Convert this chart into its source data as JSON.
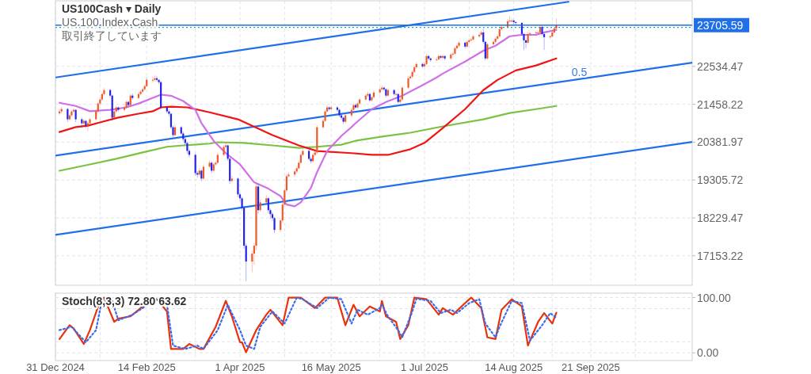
{
  "chart_data": [
    {
      "type": "candlestick",
      "title": "US100Cash ▾ Daily",
      "subtitle": "US 100 Index Cash",
      "annotations": [
        "取引終了しています",
        {
          "text": "0.5",
          "x": "2025-09-10",
          "y": 22130
        }
      ],
      "x": [
        "2025-01-02",
        "2025-01-03",
        "2025-01-06",
        "2025-01-07",
        "2025-01-08",
        "2025-01-09",
        "2025-01-10",
        "2025-01-13",
        "2025-01-14",
        "2025-01-15",
        "2025-01-16",
        "2025-01-17",
        "2025-01-20",
        "2025-01-21",
        "2025-01-22",
        "2025-01-23",
        "2025-01-24",
        "2025-01-27",
        "2025-01-28",
        "2025-01-29",
        "2025-01-30",
        "2025-01-31",
        "2025-02-03",
        "2025-02-04",
        "2025-02-05",
        "2025-02-06",
        "2025-02-07",
        "2025-02-10",
        "2025-02-11",
        "2025-02-12",
        "2025-02-13",
        "2025-02-14",
        "2025-02-17",
        "2025-02-18",
        "2025-02-19",
        "2025-02-20",
        "2025-02-21",
        "2025-02-24",
        "2025-02-25",
        "2025-02-26",
        "2025-02-27",
        "2025-02-28",
        "2025-03-03",
        "2025-03-04",
        "2025-03-05",
        "2025-03-06",
        "2025-03-07",
        "2025-03-10",
        "2025-03-11",
        "2025-03-12",
        "2025-03-13",
        "2025-03-14",
        "2025-03-17",
        "2025-03-18",
        "2025-03-19",
        "2025-03-20",
        "2025-03-21",
        "2025-03-24",
        "2025-03-25",
        "2025-03-26",
        "2025-03-27",
        "2025-03-28",
        "2025-03-31",
        "2025-04-01",
        "2025-04-02",
        "2025-04-03",
        "2025-04-04",
        "2025-04-07",
        "2025-04-08",
        "2025-04-09",
        "2025-04-10",
        "2025-04-11",
        "2025-04-14",
        "2025-04-15",
        "2025-04-16",
        "2025-04-17",
        "2025-04-18",
        "2025-04-21",
        "2025-04-22",
        "2025-04-23",
        "2025-04-24",
        "2025-04-25",
        "2025-04-28",
        "2025-04-29",
        "2025-04-30",
        "2025-05-01",
        "2025-05-02",
        "2025-05-05",
        "2025-05-06",
        "2025-05-07",
        "2025-05-08",
        "2025-05-09",
        "2025-05-12",
        "2025-05-13",
        "2025-05-14",
        "2025-05-15",
        "2025-05-16",
        "2025-05-19",
        "2025-05-20",
        "2025-05-21",
        "2025-05-22",
        "2025-05-23",
        "2025-05-26",
        "2025-05-27",
        "2025-05-28",
        "2025-05-29",
        "2025-05-30",
        "2025-06-02",
        "2025-06-03",
        "2025-06-04",
        "2025-06-05",
        "2025-06-06",
        "2025-06-09",
        "2025-06-10",
        "2025-06-11",
        "2025-06-12",
        "2025-06-13",
        "2025-06-16",
        "2025-06-17",
        "2025-06-18",
        "2025-06-19",
        "2025-06-20",
        "2025-06-23",
        "2025-06-24",
        "2025-06-25",
        "2025-06-26",
        "2025-06-27",
        "2025-06-30",
        "2025-07-01",
        "2025-07-02",
        "2025-07-03",
        "2025-07-04",
        "2025-07-07",
        "2025-07-08",
        "2025-07-09",
        "2025-07-10",
        "2025-07-11",
        "2025-07-14",
        "2025-07-15",
        "2025-07-16",
        "2025-07-17",
        "2025-07-18",
        "2025-07-21",
        "2025-07-22",
        "2025-07-23",
        "2025-07-24",
        "2025-07-25",
        "2025-07-28",
        "2025-07-29",
        "2025-07-30",
        "2025-07-31",
        "2025-08-01",
        "2025-08-04",
        "2025-08-05",
        "2025-08-06",
        "2025-08-07",
        "2025-08-08",
        "2025-08-11",
        "2025-08-12",
        "2025-08-13",
        "2025-08-14",
        "2025-08-15",
        "2025-08-18",
        "2025-08-19",
        "2025-08-20",
        "2025-08-21",
        "2025-08-22",
        "2025-08-25",
        "2025-08-26",
        "2025-08-27",
        "2025-08-28",
        "2025-08-29",
        "2025-09-01",
        "2025-09-02",
        "2025-09-03",
        "2025-09-04"
      ],
      "ohlc": [
        [
          21200,
          21330,
          21150,
          21255
        ],
        [
          21255,
          21380,
          21200,
          21322
        ],
        [
          21322,
          21360,
          20960,
          21031
        ],
        [
          21031,
          21200,
          20990,
          21143
        ],
        [
          21143,
          21300,
          21100,
          21255
        ],
        [
          21255,
          21350,
          21210,
          21300
        ],
        [
          21300,
          21320,
          20950,
          21031
        ],
        [
          21031,
          21080,
          20800,
          20918
        ],
        [
          20918,
          21040,
          20870,
          20986
        ],
        [
          20986,
          21010,
          20780,
          20851
        ],
        [
          20851,
          20960,
          20700,
          20918
        ],
        [
          20918,
          21080,
          20880,
          21031
        ],
        [
          21031,
          21300,
          21000,
          21255
        ],
        [
          21255,
          21520,
          21220,
          21480
        ],
        [
          21480,
          21640,
          21440,
          21592
        ],
        [
          21592,
          21800,
          21560,
          21749
        ],
        [
          21749,
          21920,
          21700,
          21861
        ],
        [
          21861,
          21900,
          21660,
          21704
        ],
        [
          21704,
          21730,
          20990,
          21076
        ],
        [
          21076,
          21300,
          21030,
          21255
        ],
        [
          21255,
          21420,
          21200,
          21367
        ],
        [
          21367,
          21400,
          21250,
          21300
        ],
        [
          21300,
          21410,
          21260,
          21367
        ],
        [
          21367,
          21570,
          21330,
          21524
        ],
        [
          21524,
          21560,
          21390,
          21435
        ],
        [
          21435,
          21750,
          21400,
          21704
        ],
        [
          21704,
          21760,
          21590,
          21637
        ],
        [
          21637,
          21800,
          21600,
          21749
        ],
        [
          21749,
          21860,
          21700,
          21816
        ],
        [
          21816,
          21930,
          21780,
          21884
        ],
        [
          21884,
          22020,
          21840,
          21973
        ],
        [
          21973,
          22230,
          21940,
          22153
        ],
        [
          22153,
          22240,
          22080,
          22153
        ],
        [
          22153,
          22280,
          22110,
          22198
        ],
        [
          22198,
          22250,
          22100,
          22153
        ],
        [
          22153,
          22160,
          22030,
          22086
        ],
        [
          22086,
          22120,
          21320,
          21367
        ],
        [
          21367,
          21420,
          21200,
          21255
        ],
        [
          21255,
          21320,
          21120,
          21188
        ],
        [
          21188,
          21210,
          20760,
          20806
        ],
        [
          20806,
          20850,
          20520,
          20581
        ],
        [
          20581,
          20870,
          20540,
          20806
        ],
        [
          20806,
          20840,
          20580,
          20626
        ],
        [
          20626,
          20680,
          20400,
          20469
        ],
        [
          20469,
          20530,
          20300,
          20357
        ],
        [
          20357,
          20400,
          20050,
          20133
        ],
        [
          20133,
          20180,
          19950,
          20021
        ],
        [
          20021,
          20060,
          19430,
          19504
        ],
        [
          19504,
          19560,
          19380,
          19459
        ],
        [
          19459,
          19640,
          19410,
          19572
        ],
        [
          19572,
          19610,
          19280,
          19347
        ],
        [
          19347,
          19740,
          19300,
          19684
        ],
        [
          19684,
          19860,
          19640,
          19796
        ],
        [
          19796,
          19830,
          19500,
          19572
        ],
        [
          19572,
          19800,
          19520,
          19751
        ],
        [
          19751,
          19850,
          19700,
          19796
        ],
        [
          19796,
          20080,
          19760,
          20021
        ],
        [
          20021,
          20300,
          19980,
          20245
        ],
        [
          20245,
          20350,
          20200,
          20290
        ],
        [
          20290,
          20310,
          19850,
          19908
        ],
        [
          19908,
          19950,
          19200,
          19280
        ],
        [
          19280,
          19420,
          19230,
          19347
        ],
        [
          19347,
          19380,
          18820,
          18898
        ],
        [
          18898,
          18950,
          18700,
          18786
        ],
        [
          18786,
          18830,
          18440,
          18516
        ],
        [
          18516,
          18560,
          17350,
          17439
        ],
        [
          17439,
          17500,
          16430,
          16990
        ],
        [
          16990,
          17300,
          16700,
          17214
        ],
        [
          17214,
          17520,
          16900,
          17439
        ],
        [
          17439,
          19220,
          17300,
          19122
        ],
        [
          19122,
          19200,
          18350,
          18449
        ],
        [
          18449,
          18760,
          18400,
          18673
        ],
        [
          18673,
          18880,
          18600,
          18786
        ],
        [
          18786,
          18820,
          18360,
          18449
        ],
        [
          18449,
          18500,
          18200,
          18337
        ],
        [
          18337,
          18400,
          18150,
          18224
        ],
        [
          18224,
          18260,
          17800,
          17888
        ],
        [
          17888,
          18220,
          17820,
          18157
        ],
        [
          18157,
          18660,
          18100,
          18606
        ],
        [
          18606,
          19080,
          18560,
          19010
        ],
        [
          19010,
          19470,
          18960,
          19414
        ],
        [
          19414,
          19520,
          19380,
          19459
        ],
        [
          19459,
          19600,
          19400,
          19549
        ],
        [
          19549,
          19700,
          19500,
          19639
        ],
        [
          19639,
          19860,
          19600,
          19796
        ],
        [
          19796,
          20080,
          19760,
          20021
        ],
        [
          20021,
          20190,
          19980,
          20133
        ],
        [
          20133,
          20170,
          19860,
          19908
        ],
        [
          19908,
          19960,
          19780,
          19841
        ],
        [
          19841,
          20080,
          19800,
          20021
        ],
        [
          20021,
          20140,
          19980,
          20088
        ],
        [
          20088,
          20870,
          20040,
          20806
        ],
        [
          20806,
          21050,
          20760,
          20986
        ],
        [
          20986,
          21310,
          20950,
          21255
        ],
        [
          21255,
          21420,
          21220,
          21367
        ],
        [
          21367,
          21400,
          21270,
          21322
        ],
        [
          21322,
          21420,
          21280,
          21367
        ],
        [
          21367,
          21400,
          21250,
          21300
        ],
        [
          21300,
          21330,
          21090,
          21143
        ],
        [
          21143,
          21190,
          21020,
          21076
        ],
        [
          21076,
          21110,
          20900,
          20963
        ],
        [
          20963,
          21200,
          20920,
          21143
        ],
        [
          21143,
          21360,
          21100,
          21300
        ],
        [
          21300,
          21490,
          21260,
          21435
        ],
        [
          21435,
          21480,
          21320,
          21367
        ],
        [
          21367,
          21530,
          21330,
          21480
        ],
        [
          21480,
          21640,
          21440,
          21592
        ],
        [
          21592,
          21760,
          21550,
          21704
        ],
        [
          21704,
          21820,
          21660,
          21749
        ],
        [
          21749,
          21780,
          21520,
          21569
        ],
        [
          21569,
          21710,
          21530,
          21659
        ],
        [
          21659,
          21850,
          21620,
          21794
        ],
        [
          21794,
          21940,
          21750,
          21884
        ],
        [
          21884,
          21990,
          21850,
          21929
        ],
        [
          21929,
          21960,
          21830,
          21884
        ],
        [
          21884,
          21910,
          21650,
          21704
        ],
        [
          21704,
          21920,
          21670,
          21861
        ],
        [
          21861,
          21890,
          21700,
          21749
        ],
        [
          21749,
          21800,
          21700,
          21749
        ],
        [
          21749,
          21770,
          21470,
          21524
        ],
        [
          21524,
          21650,
          21480,
          21592
        ],
        [
          21592,
          21980,
          21550,
          21929
        ],
        [
          21929,
          22250,
          21890,
          22198
        ],
        [
          22198,
          22300,
          22160,
          22243
        ],
        [
          22243,
          22430,
          22200,
          22378
        ],
        [
          22378,
          22560,
          22340,
          22512
        ],
        [
          22512,
          22650,
          22470,
          22602
        ],
        [
          22602,
          22640,
          22490,
          22535
        ],
        [
          22535,
          22650,
          22500,
          22602
        ],
        [
          22602,
          22880,
          22560,
          22827
        ],
        [
          22827,
          22860,
          22710,
          22760
        ],
        [
          22760,
          22790,
          22660,
          22715
        ],
        [
          22715,
          22790,
          22680,
          22737
        ],
        [
          22737,
          22870,
          22700,
          22827
        ],
        [
          22827,
          22850,
          22740,
          22782
        ],
        [
          22782,
          22870,
          22740,
          22827
        ],
        [
          22827,
          22850,
          22710,
          22760
        ],
        [
          22760,
          22920,
          22720,
          22871
        ],
        [
          22871,
          22940,
          22830,
          22894
        ],
        [
          22894,
          23100,
          22860,
          23051
        ],
        [
          23051,
          23170,
          23010,
          23119
        ],
        [
          23119,
          23260,
          23080,
          23208
        ],
        [
          23208,
          23240,
          23050,
          23096
        ],
        [
          23096,
          23280,
          23060,
          23231
        ],
        [
          23231,
          23320,
          23190,
          23276
        ],
        [
          23276,
          23340,
          23240,
          23298
        ],
        [
          23298,
          23440,
          23260,
          23388
        ],
        [
          23388,
          23480,
          23350,
          23433
        ],
        [
          23433,
          23560,
          23400,
          23500
        ],
        [
          23500,
          23610,
          23180,
          23231
        ],
        [
          23231,
          23260,
          22700,
          22760
        ],
        [
          22760,
          23210,
          22720,
          23163
        ],
        [
          23163,
          23280,
          23120,
          23231
        ],
        [
          23231,
          23370,
          23190,
          23320
        ],
        [
          23320,
          23440,
          23280,
          23388
        ],
        [
          23388,
          23640,
          23350,
          23590
        ],
        [
          23590,
          23710,
          23550,
          23657
        ],
        [
          23657,
          23880,
          23620,
          23814
        ],
        [
          23814,
          23960,
          23780,
          23837
        ],
        [
          23837,
          23900,
          23780,
          23837
        ],
        [
          23837,
          23860,
          23740,
          23792
        ],
        [
          23792,
          23820,
          23720,
          23770
        ],
        [
          23770,
          23790,
          23400,
          23455
        ],
        [
          23455,
          23490,
          23000,
          23276
        ],
        [
          23276,
          23300,
          23050,
          23208
        ],
        [
          23208,
          23500,
          23170,
          23455
        ],
        [
          23455,
          23520,
          23420,
          23478
        ],
        [
          23478,
          23550,
          23450,
          23500
        ],
        [
          23500,
          23540,
          23460,
          23500
        ],
        [
          23500,
          23720,
          23470,
          23657
        ],
        [
          23657,
          23690,
          23410,
          23455
        ],
        [
          23455,
          23480,
          23000,
          23365
        ],
        [
          23365,
          23430,
          23300,
          23388
        ],
        [
          23388,
          23560,
          23350,
          23500
        ],
        [
          23500,
          23660,
          23460,
          23612
        ],
        [
          23612,
          23900,
          23570,
          23705
        ]
      ],
      "colors": [
        "#ec5a2c",
        "#ec5a2c",
        "#2323e6",
        "#ec5a2c",
        "#ec5a2c",
        "#ec5a2c",
        "#2323e6",
        "#2323e6",
        "#ec5a2c",
        "#2323e6",
        "#ec5a2c",
        "#ec5a2c",
        "#ec5a2c",
        "#ec5a2c",
        "#ec5a2c",
        "#ec5a2c",
        "#ec5a2c",
        "#2323e6",
        "#2323e6",
        "#ec5a2c",
        "#ec5a2c",
        "#2323e6",
        "#ec5a2c",
        "#ec5a2c",
        "#2323e6",
        "#ec5a2c",
        "#2323e6",
        "#ec5a2c",
        "#ec5a2c",
        "#ec5a2c",
        "#ec5a2c",
        "#ec5a2c",
        "#ec5a2c",
        "#ec5a2c",
        "#2323e6",
        "#2323e6",
        "#2323e6",
        "#2323e6",
        "#2323e6",
        "#2323e6",
        "#2323e6",
        "#ec5a2c",
        "#2323e6",
        "#2323e6",
        "#2323e6",
        "#2323e6",
        "#2323e6",
        "#2323e6",
        "#2323e6",
        "#ec5a2c",
        "#2323e6",
        "#ec5a2c",
        "#ec5a2c",
        "#2323e6",
        "#ec5a2c",
        "#ec5a2c",
        "#ec5a2c",
        "#ec5a2c",
        "#ec5a2c",
        "#2323e6",
        "#2323e6",
        "#ec5a2c",
        "#2323e6",
        "#2323e6",
        "#2323e6",
        "#2323e6",
        "#2323e6",
        "#ec5a2c",
        "#ec5a2c",
        "#ec5a2c",
        "#2323e6",
        "#ec5a2c",
        "#ec5a2c",
        "#2323e6",
        "#2323e6",
        "#2323e6",
        "#2323e6",
        "#ec5a2c",
        "#ec5a2c",
        "#ec5a2c",
        "#ec5a2c",
        "#ec5a2c",
        "#ec5a2c",
        "#ec5a2c",
        "#ec5a2c",
        "#ec5a2c",
        "#ec5a2c",
        "#2323e6",
        "#2323e6",
        "#ec5a2c",
        "#ec5a2c",
        "#ec5a2c",
        "#ec5a2c",
        "#ec5a2c",
        "#ec5a2c",
        "#2323e6",
        "#ec5a2c",
        "#2323e6",
        "#2323e6",
        "#2323e6",
        "#2323e6",
        "#ec5a2c",
        "#ec5a2c",
        "#ec5a2c",
        "#2323e6",
        "#ec5a2c",
        "#ec5a2c",
        "#ec5a2c",
        "#ec5a2c",
        "#2323e6",
        "#ec5a2c",
        "#ec5a2c",
        "#ec5a2c",
        "#ec5a2c",
        "#2323e6",
        "#2323e6",
        "#ec5a2c",
        "#2323e6",
        "#ec5a2c",
        "#2323e6",
        "#ec5a2c",
        "#ec5a2c",
        "#ec5a2c",
        "#ec5a2c",
        "#ec5a2c",
        "#ec5a2c",
        "#ec5a2c",
        "#2323e6",
        "#ec5a2c",
        "#ec5a2c",
        "#2323e6",
        "#2323e6",
        "#ec5a2c",
        "#ec5a2c",
        "#2323e6",
        "#ec5a2c",
        "#2323e6",
        "#ec5a2c",
        "#ec5a2c",
        "#ec5a2c",
        "#ec5a2c",
        "#ec5a2c",
        "#2323e6",
        "#ec5a2c",
        "#ec5a2c",
        "#ec5a2c",
        "#ec5a2c",
        "#ec5a2c",
        "#ec5a2c",
        "#2323e6",
        "#2323e6",
        "#ec5a2c",
        "#ec5a2c",
        "#ec5a2c",
        "#ec5a2c",
        "#ec5a2c",
        "#ec5a2c",
        "#ec5a2c",
        "#ec5a2c",
        "#ec5a2c",
        "#2323e6",
        "#2323e6",
        "#2323e6",
        "#2323e6",
        "#2323e6",
        "#ec5a2c",
        "#ec5a2c",
        "#ec5a2c",
        "#ec5a2c",
        "#ec5a2c",
        "#2323e6",
        "#2323e6",
        "#ec5a2c",
        "#ec5a2c",
        "#ec5a2c",
        "#ec5a2c"
      ],
      "series": [
        {
          "type": "line",
          "color": "#1f6fe8",
          "x": [
            "2024-12-31",
            "2025-09-10"
          ],
          "values": [
            22220,
            24370
          ]
        },
        {
          "type": "line",
          "color": "#1f6fe8",
          "x": [
            "2024-12-31",
            "2025-11-10"
          ],
          "values": [
            20000,
            22640
          ]
        },
        {
          "type": "line",
          "color": "#1f6fe8",
          "x": [
            "2024-12-31",
            "2025-11-10"
          ],
          "values": [
            17750,
            20390
          ]
        },
        {
          "type": "line",
          "color": "#7cc242",
          "x": [
            "2025-01-02",
            "2025-01-17",
            "2025-01-30",
            "2025-02-12",
            "2025-02-24",
            "2025-03-04",
            "2025-03-17",
            "2025-03-21",
            "2025-04-03",
            "2025-04-17",
            "2025-04-30",
            "2025-05-09",
            "2025-05-21",
            "2025-05-28",
            "2025-06-10",
            "2025-06-24",
            "2025-07-10",
            "2025-07-30",
            "2025-08-12",
            "2025-08-25",
            "2025-09-04"
          ],
          "values": [
            19570,
            19750,
            19910,
            20090,
            20250,
            20290,
            20340,
            20380,
            20360,
            20290,
            20220,
            20250,
            20310,
            20420,
            20540,
            20650,
            20830,
            21030,
            21210,
            21320,
            21410
          ]
        },
        {
          "type": "line",
          "color": "#f01414",
          "x": [
            "2025-01-02",
            "2025-01-10",
            "2025-01-16",
            "2025-01-23",
            "2025-01-31",
            "2025-02-10",
            "2025-02-17",
            "2025-02-21",
            "2025-02-26",
            "2025-03-06",
            "2025-03-17",
            "2025-03-31",
            "2025-04-17",
            "2025-04-30",
            "2025-05-09",
            "2025-05-26",
            "2025-06-05",
            "2025-06-13",
            "2025-06-24",
            "2025-07-01",
            "2025-07-10",
            "2025-07-21",
            "2025-07-30",
            "2025-08-06",
            "2025-08-15",
            "2025-08-25",
            "2025-09-04"
          ],
          "values": [
            20670,
            20810,
            20850,
            20960,
            21080,
            21190,
            21260,
            21370,
            21390,
            21370,
            21230,
            21030,
            20580,
            20290,
            20130,
            20070,
            20020,
            20020,
            20180,
            20360,
            20780,
            21320,
            21860,
            22150,
            22420,
            22560,
            22760
          ]
        },
        {
          "type": "line",
          "color": "#d070e8",
          "x": [
            "2025-01-02",
            "2025-01-10",
            "2025-01-17",
            "2025-01-27",
            "2025-02-04",
            "2025-02-10",
            "2025-02-17",
            "2025-02-21",
            "2025-02-26",
            "2025-03-04",
            "2025-03-10",
            "2025-03-13",
            "2025-03-19",
            "2025-03-25",
            "2025-04-01",
            "2025-04-08",
            "2025-04-15",
            "2025-04-21",
            "2025-04-24",
            "2025-04-28",
            "2025-05-01",
            "2025-05-06",
            "2025-05-09",
            "2025-05-14",
            "2025-05-21",
            "2025-05-26",
            "2025-05-28",
            "2025-06-05",
            "2025-06-12",
            "2025-06-20",
            "2025-06-30",
            "2025-07-07",
            "2025-07-10",
            "2025-07-21",
            "2025-07-30",
            "2025-08-05",
            "2025-08-12",
            "2025-08-18",
            "2025-08-25",
            "2025-08-29",
            "2025-09-04"
          ],
          "values": [
            21500,
            21410,
            21260,
            21300,
            21370,
            21480,
            21640,
            21730,
            21700,
            21550,
            21300,
            20920,
            20420,
            20070,
            19750,
            19240,
            19060,
            18850,
            18610,
            18560,
            18670,
            19080,
            19530,
            20130,
            20560,
            20810,
            20920,
            21320,
            21520,
            21700,
            22000,
            22220,
            22330,
            22670,
            22980,
            23120,
            23390,
            23430,
            23430,
            23500,
            23570
          ]
        }
      ],
      "ref_lines": [
        {
          "axis": "y",
          "value": 23705.59,
          "label": "23705.59",
          "color": "#1f6fe8"
        },
        {
          "axis": "y",
          "value": 23640,
          "color": "#26a69a",
          "line_style": "dotted"
        }
      ],
      "xlim": [
        "2024-12-31",
        "2025-11-10"
      ],
      "ylim": [
        16316,
        24398
      ],
      "xticks": [
        {
          "value": "2024-12-31",
          "label": null
        },
        {
          "value": "2025-01-22",
          "label": null
        },
        {
          "value": "2025-02-14",
          "label": null
        },
        {
          "value": "2025-03-10",
          "label": null
        },
        {
          "value": "2025-04-01",
          "label": null
        },
        {
          "value": "2025-04-23",
          "label": null
        },
        {
          "value": "2025-05-16",
          "label": null
        },
        {
          "value": "2025-06-09",
          "label": null
        },
        {
          "value": "2025-07-01",
          "label": null
        },
        {
          "value": "2025-07-23",
          "label": null
        },
        {
          "value": "2025-08-14",
          "label": null
        },
        {
          "value": "2025-09-02",
          "label": null
        },
        {
          "value": "2025-09-21",
          "label": null
        },
        {
          "value": "2025-10-13",
          "label": null
        }
      ],
      "yticks": [
        17153.22,
        18229.47,
        19305.72,
        20381.97,
        21458.22,
        22534.47
      ],
      "grid": true,
      "tick_labels": "y"
    },
    {
      "type": "line",
      "title": "Stoch(8,3,3) 72.80 63.62",
      "series": [
        {
          "color": "#e8320c",
          "x": [
            "2025-01-02",
            "2025-01-07",
            "2025-01-09",
            "2025-01-14",
            "2025-01-17",
            "2025-01-22",
            "2025-01-24",
            "2025-01-29",
            "2025-01-31",
            "2025-02-06",
            "2025-02-11",
            "2025-02-17",
            "2025-02-19",
            "2025-02-24",
            "2025-02-26",
            "2025-03-04",
            "2025-03-07",
            "2025-03-12",
            "2025-03-14",
            "2025-03-20",
            "2025-03-25",
            "2025-03-28",
            "2025-04-01",
            "2025-04-02",
            "2025-04-04",
            "2025-04-09",
            "2025-04-14",
            "2025-04-16",
            "2025-04-22",
            "2025-04-25",
            "2025-05-01",
            "2025-05-08",
            "2025-05-13",
            "2025-05-19",
            "2025-05-23",
            "2025-05-27",
            "2025-05-30",
            "2025-06-04",
            "2025-06-09",
            "2025-06-10",
            "2025-06-12",
            "2025-06-17",
            "2025-06-19",
            "2025-06-23",
            "2025-06-26",
            "2025-07-02",
            "2025-07-08",
            "2025-07-10",
            "2025-07-15",
            "2025-07-21",
            "2025-07-24",
            "2025-07-29",
            "2025-08-01",
            "2025-08-05",
            "2025-08-08",
            "2025-08-13",
            "2025-08-18",
            "2025-08-21",
            "2025-08-26",
            "2025-08-29",
            "2025-09-02",
            "2025-09-04"
          ],
          "values": [
            25,
            50,
            44,
            16,
            41,
            94,
            100,
            56,
            62,
            66,
            81,
            100,
            97,
            75,
            7,
            7,
            16,
            7,
            7,
            47,
            94,
            66,
            19,
            19,
            1,
            41,
            69,
            78,
            50,
            100,
            100,
            81,
            100,
            100,
            50,
            87,
            66,
            84,
            75,
            94,
            66,
            56,
            25,
            50,
            100,
            97,
            69,
            81,
            69,
            90,
            100,
            81,
            28,
            25,
            78,
            97,
            84,
            13,
            56,
            72,
            53,
            72.8
          ]
        },
        {
          "color": "#3b6cf0",
          "line_style": "dotted",
          "x": [
            "2025-01-02",
            "2025-01-08",
            "2025-01-15",
            "2025-01-20",
            "2025-01-23",
            "2025-01-28",
            "2025-01-31",
            "2025-02-07",
            "2025-02-12",
            "2025-02-18",
            "2025-02-24",
            "2025-02-27",
            "2025-03-05",
            "2025-03-11",
            "2025-03-14",
            "2025-03-21",
            "2025-03-26",
            "2025-04-01",
            "2025-04-04",
            "2025-04-08",
            "2025-04-11",
            "2025-04-17",
            "2025-04-23",
            "2025-04-29",
            "2025-05-02",
            "2025-05-09",
            "2025-05-15",
            "2025-05-21",
            "2025-05-26",
            "2025-05-29",
            "2025-06-03",
            "2025-06-09",
            "2025-06-10",
            "2025-06-13",
            "2025-06-18",
            "2025-06-20",
            "2025-06-25",
            "2025-06-27",
            "2025-07-04",
            "2025-07-09",
            "2025-07-14",
            "2025-07-17",
            "2025-07-23",
            "2025-07-28",
            "2025-07-31",
            "2025-08-05",
            "2025-08-07",
            "2025-08-13",
            "2025-08-18",
            "2025-08-22",
            "2025-08-28",
            "2025-09-01",
            "2025-09-04"
          ],
          "values": [
            41,
            47,
            19,
            41,
            97,
            94,
            59,
            69,
            81,
            97,
            87,
            13,
            7,
            13,
            7,
            41,
            87,
            41,
            13,
            7,
            47,
            75,
            53,
            100,
            97,
            81,
            100,
            97,
            53,
            78,
            69,
            81,
            87,
            66,
            41,
            28,
            75,
            98,
            94,
            72,
            78,
            72,
            90,
            97,
            53,
            28,
            47,
            94,
            90,
            22,
            50,
            72,
            63.62
          ]
        }
      ],
      "xlim": [
        "2024-12-31",
        "2025-11-10"
      ],
      "ylim": [
        -14,
        108
      ],
      "xticks": [
        {
          "value": "2024-12-31",
          "label": "31 Dec 2024"
        },
        {
          "value": "2025-01-22",
          "label": null
        },
        {
          "value": "2025-02-14",
          "label": "14 Feb 2025"
        },
        {
          "value": "2025-03-10",
          "label": null
        },
        {
          "value": "2025-04-01",
          "label": "1 Apr 2025"
        },
        {
          "value": "2025-04-23",
          "label": null
        },
        {
          "value": "2025-05-16",
          "label": "16 May 2025"
        },
        {
          "value": "2025-06-09",
          "label": null
        },
        {
          "value": "2025-07-01",
          "label": "1 Jul 2025"
        },
        {
          "value": "2025-07-23",
          "label": null
        },
        {
          "value": "2025-08-14",
          "label": "14 Aug 2025"
        },
        {
          "value": "2025-09-02",
          "label": null
        },
        {
          "value": "2025-09-21",
          "label": "21 Sep 2025"
        },
        {
          "value": "2025-10-13",
          "label": null
        }
      ],
      "yticks": [
        {
          "value": 0,
          "label": "0.00"
        },
        {
          "value": 20,
          "label": null
        },
        {
          "value": 80,
          "label": null
        },
        {
          "value": 100,
          "label": "100.00"
        }
      ],
      "grid": true
    }
  ]
}
